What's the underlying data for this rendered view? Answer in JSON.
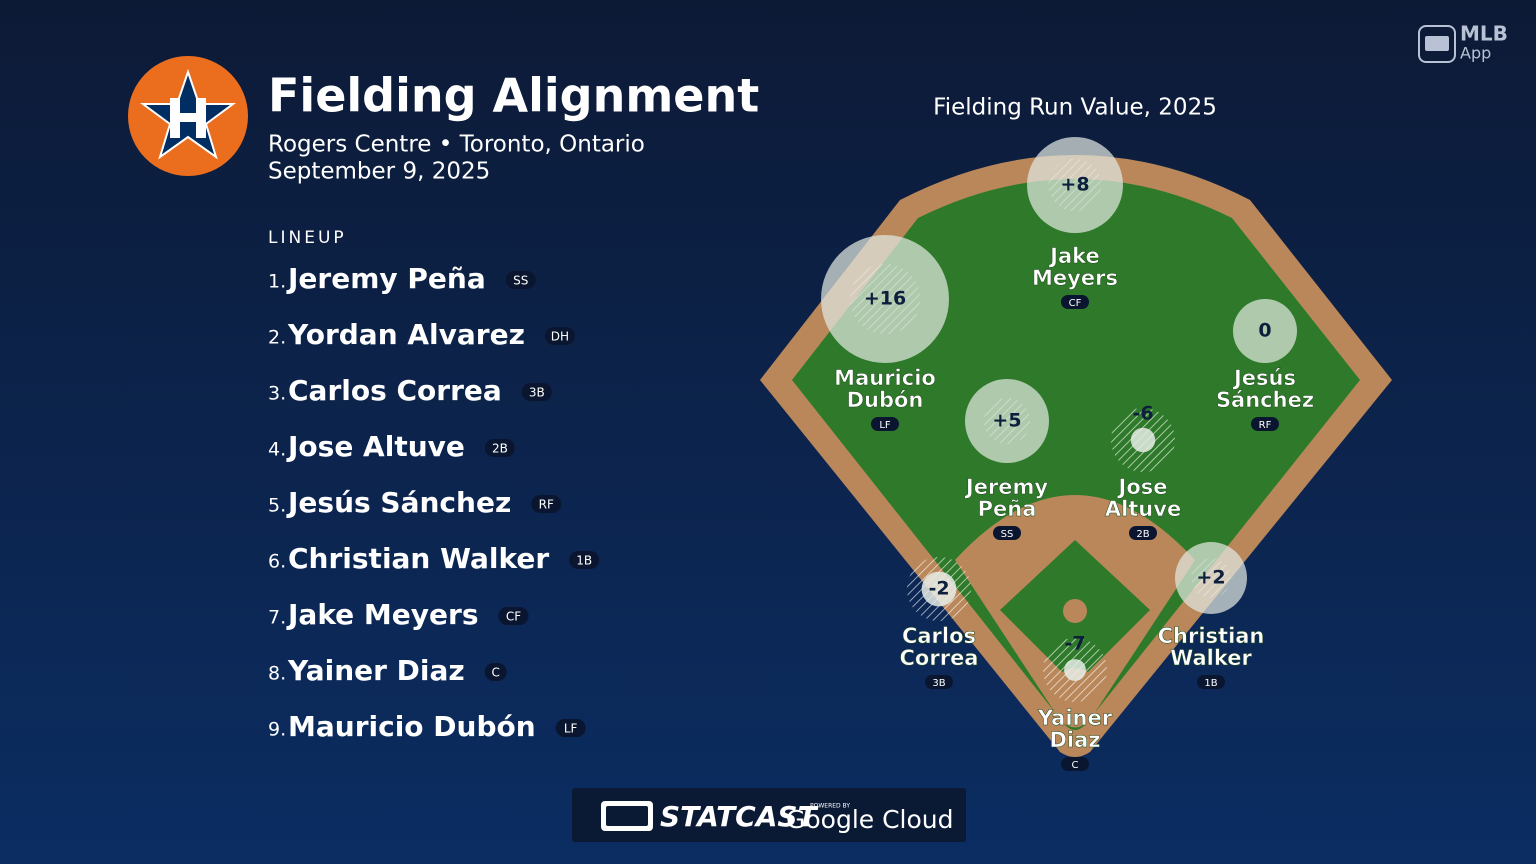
{
  "header": {
    "title": "Fielding Alignment",
    "venue": "Rogers Centre • Toronto, Ontario",
    "date": "September 9, 2025"
  },
  "brand": {
    "mlb": "MLB",
    "app": "App"
  },
  "lineup": {
    "heading": "LINEUP",
    "players": [
      {
        "order": "1.",
        "name": "Jeremy Peña",
        "pos": "SS"
      },
      {
        "order": "2.",
        "name": "Yordan Alvarez",
        "pos": "DH"
      },
      {
        "order": "3.",
        "name": "Carlos Correa",
        "pos": "3B"
      },
      {
        "order": "4.",
        "name": "Jose Altuve",
        "pos": "2B"
      },
      {
        "order": "5.",
        "name": "Jesús Sánchez",
        "pos": "RF"
      },
      {
        "order": "6.",
        "name": "Christian Walker",
        "pos": "1B"
      },
      {
        "order": "7.",
        "name": "Jake Meyers",
        "pos": "CF"
      },
      {
        "order": "8.",
        "name": "Yainer Diaz",
        "pos": "C"
      },
      {
        "order": "9.",
        "name": "Mauricio Dubón",
        "pos": "LF"
      }
    ]
  },
  "field": {
    "title": "Fielding Run Value, 2025",
    "players": [
      {
        "name_lines": [
          "Jake",
          "Meyers"
        ],
        "pos": "CF",
        "value": 8,
        "value_label": "+8"
      },
      {
        "name_lines": [
          "Mauricio",
          "Dubón"
        ],
        "pos": "LF",
        "value": 16,
        "value_label": "+16"
      },
      {
        "name_lines": [
          "Jesús",
          "Sánchez"
        ],
        "pos": "RF",
        "value": 0,
        "value_label": "0"
      },
      {
        "name_lines": [
          "Jeremy",
          "Peña"
        ],
        "pos": "SS",
        "value": 5,
        "value_label": "+5"
      },
      {
        "name_lines": [
          "Jose",
          "Altuve"
        ],
        "pos": "2B",
        "value": -6,
        "value_label": "-6"
      },
      {
        "name_lines": [
          "Carlos",
          "Correa"
        ],
        "pos": "3B",
        "value": -2,
        "value_label": "-2"
      },
      {
        "name_lines": [
          "Christian",
          "Walker"
        ],
        "pos": "1B",
        "value": 2,
        "value_label": "+2"
      },
      {
        "name_lines": [
          "Yainer",
          "Diaz"
        ],
        "pos": "C",
        "value": -7,
        "value_label": "-7"
      }
    ]
  },
  "footer": {
    "statcast": "STATCAST",
    "powered": "POWERED BY",
    "cloud": "Google Cloud"
  }
}
